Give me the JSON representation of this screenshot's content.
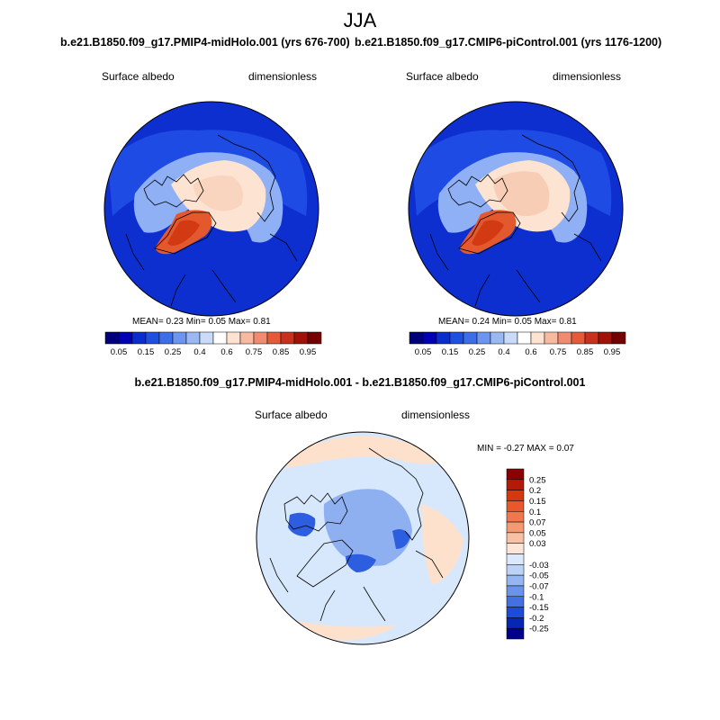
{
  "figure": {
    "season": "JJA",
    "diff_title": "b.e21.B1850.f09_g17.PMIP4-midHolo.001 - b.e21.B1850.f09_g17.CMIP6-piControl.001"
  },
  "chart_data": [
    {
      "type": "heatmap",
      "projection": "north-polar-stereographic",
      "title": "b.e21.B1850.f09_g17.PMIP4-midHolo.001 (yrs 676-700)",
      "variable": "Surface albedo",
      "units": "dimensionless",
      "stats_text": "MEAN=   0.23  Min=   0.05  Max=   0.81",
      "stats": {
        "mean": 0.23,
        "min": 0.05,
        "max": 0.81
      },
      "colorbar": {
        "levels": [
          0.05,
          0.1,
          0.15,
          0.2,
          0.25,
          0.3,
          0.4,
          0.5,
          0.6,
          0.7,
          0.75,
          0.8,
          0.85,
          0.9,
          0.95
        ],
        "tick_labels": [
          "0.05",
          "0.15",
          "0.25",
          "0.4",
          "0.6",
          "0.75",
          "0.85",
          "0.95"
        ],
        "colors": [
          "#00007a",
          "#0000b4",
          "#0a2ecc",
          "#1f4fe0",
          "#3d6ee8",
          "#6d94ee",
          "#9bb8f3",
          "#c9dbf8",
          "#ffffff",
          "#fde3d0",
          "#f8b9a1",
          "#f08b70",
          "#e45b3c",
          "#c8311e",
          "#a01208",
          "#750000"
        ]
      }
    },
    {
      "type": "heatmap",
      "projection": "north-polar-stereographic",
      "title": "b.e21.B1850.f09_g17.CMIP6-piControl.001 (yrs 1176-1200)",
      "variable": "Surface albedo",
      "units": "dimensionless",
      "stats_text": "MEAN=   0.24  Min=   0.05  Max=   0.81",
      "stats": {
        "mean": 0.24,
        "min": 0.05,
        "max": 0.81
      },
      "colorbar": {
        "levels": [
          0.05,
          0.1,
          0.15,
          0.2,
          0.25,
          0.3,
          0.4,
          0.5,
          0.6,
          0.7,
          0.75,
          0.8,
          0.85,
          0.9,
          0.95
        ],
        "tick_labels": [
          "0.05",
          "0.15",
          "0.25",
          "0.4",
          "0.6",
          "0.75",
          "0.85",
          "0.95"
        ],
        "colors": [
          "#00007a",
          "#0000b4",
          "#0a2ecc",
          "#1f4fe0",
          "#3d6ee8",
          "#6d94ee",
          "#9bb8f3",
          "#c9dbf8",
          "#ffffff",
          "#fde3d0",
          "#f8b9a1",
          "#f08b70",
          "#e45b3c",
          "#c8311e",
          "#a01208",
          "#750000"
        ]
      }
    },
    {
      "type": "heatmap",
      "projection": "north-polar-stereographic",
      "title": "b.e21.B1850.f09_g17.PMIP4-midHolo.001 - b.e21.B1850.f09_g17.CMIP6-piControl.001",
      "variable": "Surface albedo",
      "units": "dimensionless",
      "stats_text": "MIN =  -0.27 MAX =   0.07",
      "stats": {
        "min": -0.27,
        "max": 0.07
      },
      "colorbar": {
        "orientation": "vertical",
        "tick_labels": [
          "0.25",
          "0.2",
          "0.15",
          "0.1",
          "0.07",
          "0.05",
          "0.03",
          "",
          "-0.03",
          "-0.05",
          "-0.07",
          "-0.1",
          "-0.15",
          "-0.2",
          "-0.25"
        ],
        "colors": [
          "#8b0000",
          "#b51a08",
          "#d4380f",
          "#e8582a",
          "#f0784c",
          "#f49a73",
          "#f8c0a4",
          "#fde6d8",
          "#dce9fb",
          "#bcd3f6",
          "#96b6f1",
          "#6b93ea",
          "#4570e2",
          "#1e4bd8",
          "#0626b4",
          "#00008a"
        ]
      }
    }
  ],
  "field_colors": {
    "ocean_mid": "#0d2fd0",
    "ocean_light": "#2352e8",
    "land_light": "#8fb0f5",
    "ice_cap": "#fde4d2",
    "ice_core": "#f7c9b0",
    "greenland": "#e4582e",
    "greenland_core": "#d23a14",
    "diff_bg": "#d8e8fc",
    "diff_arctic": "#8fb0f0",
    "diff_pos": "#fde1cc",
    "diff_neg": "#2e5ee0"
  }
}
